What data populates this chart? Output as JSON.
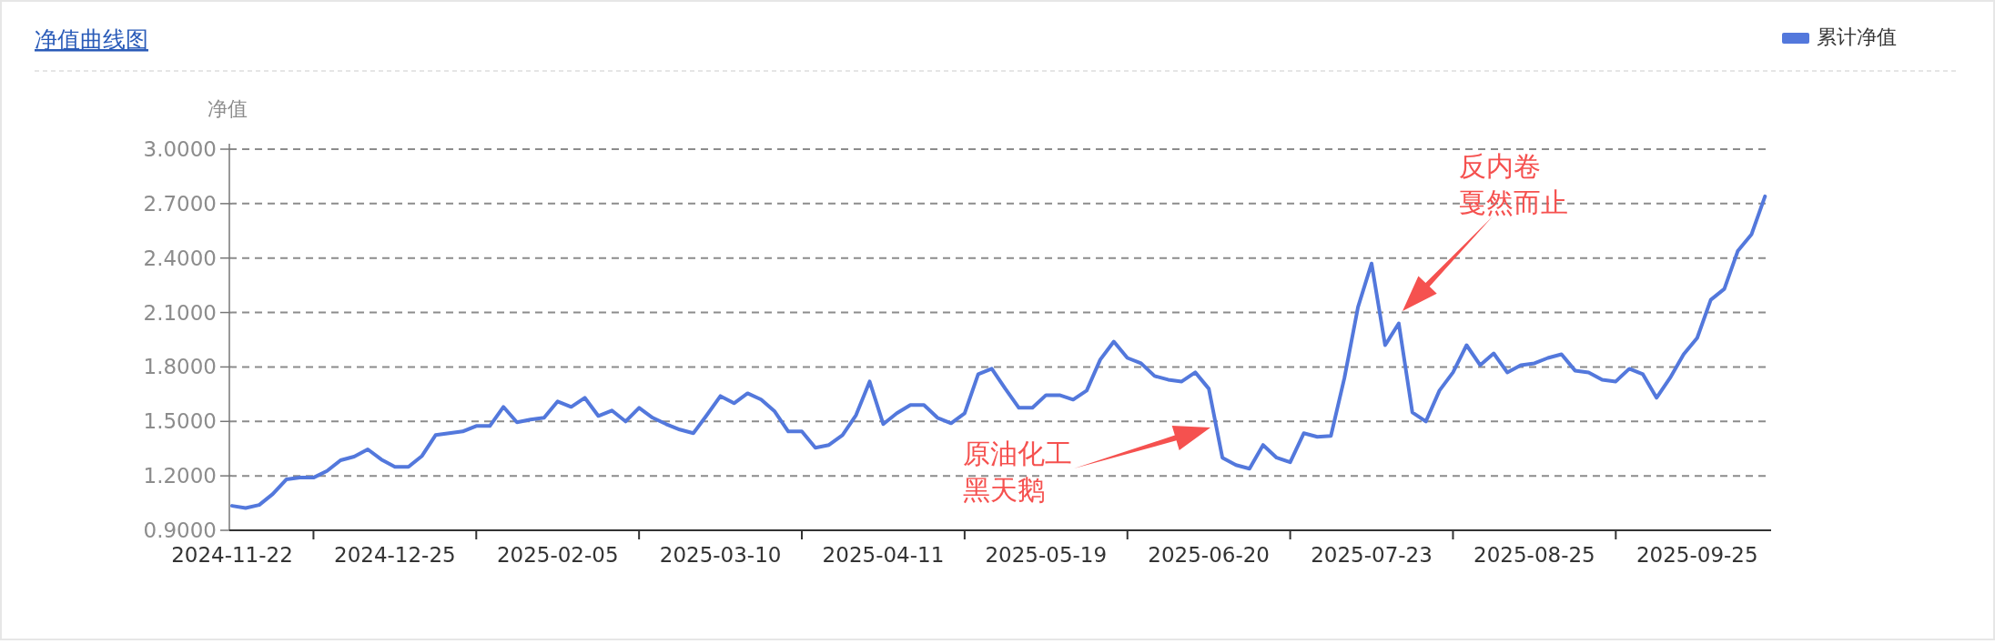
{
  "chart_data": {
    "type": "line",
    "title": "净值曲线图",
    "ylabel": "净值",
    "categories": [
      "2024-11-22",
      null,
      null,
      null,
      null,
      null,
      null,
      null,
      null,
      null,
      null,
      null,
      "2024-12-25",
      null,
      null,
      null,
      null,
      null,
      null,
      null,
      null,
      null,
      null,
      null,
      "2025-02-05",
      null,
      null,
      null,
      null,
      null,
      null,
      null,
      null,
      null,
      null,
      null,
      "2025-03-10",
      null,
      null,
      null,
      null,
      null,
      null,
      null,
      null,
      null,
      null,
      null,
      "2025-04-11",
      null,
      null,
      null,
      null,
      null,
      null,
      null,
      null,
      null,
      null,
      null,
      "2025-05-19",
      null,
      null,
      null,
      null,
      null,
      null,
      null,
      null,
      null,
      null,
      null,
      "2025-06-20",
      null,
      null,
      null,
      null,
      null,
      null,
      null,
      null,
      null,
      null,
      null,
      "2025-07-23",
      null,
      null,
      null,
      null,
      null,
      null,
      null,
      null,
      null,
      null,
      null,
      "2025-08-25",
      null,
      null,
      null,
      null,
      null,
      null,
      null,
      null,
      null,
      null,
      null,
      "2025-09-25",
      null,
      null,
      null,
      null,
      null
    ],
    "series": [
      {
        "name": "累计净值",
        "color": "#5378dc",
        "values": [
          1.035,
          1.023,
          1.04,
          1.1,
          1.18,
          1.19,
          1.19,
          1.227,
          1.286,
          1.306,
          1.346,
          1.29,
          1.25,
          1.25,
          1.31,
          1.425,
          1.435,
          1.445,
          1.475,
          1.475,
          1.58,
          1.495,
          1.51,
          1.52,
          1.61,
          1.58,
          1.63,
          1.53,
          1.56,
          1.5,
          1.575,
          1.52,
          1.485,
          1.455,
          1.435,
          1.535,
          1.64,
          1.6,
          1.655,
          1.62,
          1.555,
          1.445,
          1.445,
          1.355,
          1.37,
          1.425,
          1.535,
          1.72,
          1.485,
          1.545,
          1.59,
          1.59,
          1.52,
          1.49,
          1.545,
          1.76,
          1.79,
          1.68,
          1.575,
          1.575,
          1.645,
          1.645,
          1.62,
          1.67,
          1.84,
          1.94,
          1.85,
          1.82,
          1.75,
          1.73,
          1.72,
          1.77,
          1.68,
          1.3,
          1.26,
          1.24,
          1.37,
          1.3,
          1.275,
          1.435,
          1.415,
          1.42,
          1.74,
          2.13,
          2.37,
          1.92,
          2.04,
          1.55,
          1.5,
          1.67,
          1.77,
          1.92,
          1.81,
          1.875,
          1.77,
          1.81,
          1.82,
          1.85,
          1.87,
          1.78,
          1.77,
          1.73,
          1.72,
          1.79,
          1.76,
          1.63,
          1.74,
          1.87,
          1.96,
          2.17,
          2.23,
          2.44,
          2.53,
          2.74
        ]
      }
    ],
    "ylim": [
      0.9,
      3.0
    ],
    "yticks": [
      {
        "value": 0.9,
        "label": "0.9000"
      },
      {
        "value": 1.2,
        "label": "1.2000"
      },
      {
        "value": 1.5,
        "label": "1.5000"
      },
      {
        "value": 1.8,
        "label": "1.8000"
      },
      {
        "value": 2.1,
        "label": "2.1000"
      },
      {
        "value": 2.4,
        "label": "2.4000"
      },
      {
        "value": 2.7,
        "label": "2.7000"
      },
      {
        "value": 3.0,
        "label": "3.0000"
      }
    ],
    "grid": "y",
    "legend": "top right",
    "marker": "none",
    "line_style": "solid",
    "annotations": [
      "原油化工",
      "黑天鹅",
      "反内卷",
      "戛然而止"
    ]
  }
}
